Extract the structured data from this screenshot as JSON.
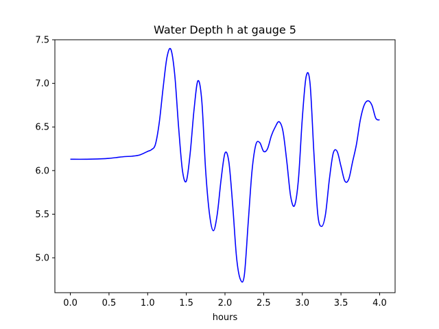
{
  "chart_data": {
    "type": "line",
    "title": "Water Depth h at gauge 5",
    "xlabel": "hours",
    "ylabel": "",
    "xlim": [
      -0.2,
      4.2
    ],
    "ylim": [
      4.6,
      7.5
    ],
    "xticks": [
      {
        "value": 0.0,
        "label": "0.0"
      },
      {
        "value": 0.5,
        "label": "0.5"
      },
      {
        "value": 1.0,
        "label": "1.0"
      },
      {
        "value": 1.5,
        "label": "1.5"
      },
      {
        "value": 2.0,
        "label": "2.0"
      },
      {
        "value": 2.5,
        "label": "2.5"
      },
      {
        "value": 3.0,
        "label": "3.0"
      },
      {
        "value": 3.5,
        "label": "3.5"
      },
      {
        "value": 4.0,
        "label": "4.0"
      }
    ],
    "yticks": [
      {
        "value": 5.0,
        "label": "5.0"
      },
      {
        "value": 5.5,
        "label": "5.5"
      },
      {
        "value": 6.0,
        "label": "6.0"
      },
      {
        "value": 6.5,
        "label": "6.5"
      },
      {
        "value": 7.0,
        "label": "7.0"
      },
      {
        "value": 7.5,
        "label": "7.5"
      }
    ],
    "grid": false,
    "legend": "none",
    "series": [
      {
        "color": "#0000ff",
        "x": [
          0.0,
          0.2,
          0.4,
          0.5,
          0.6,
          0.7,
          0.8,
          0.9,
          1.0,
          1.05,
          1.1,
          1.15,
          1.2,
          1.25,
          1.3,
          1.35,
          1.4,
          1.45,
          1.5,
          1.55,
          1.6,
          1.65,
          1.7,
          1.75,
          1.8,
          1.85,
          1.9,
          1.95,
          2.0,
          2.05,
          2.1,
          2.15,
          2.2,
          2.25,
          2.3,
          2.35,
          2.4,
          2.45,
          2.5,
          2.55,
          2.6,
          2.65,
          2.7,
          2.75,
          2.8,
          2.85,
          2.9,
          2.95,
          3.0,
          3.05,
          3.1,
          3.15,
          3.2,
          3.25,
          3.3,
          3.35,
          3.4,
          3.45,
          3.5,
          3.55,
          3.6,
          3.65,
          3.7,
          3.75,
          3.8,
          3.85,
          3.9,
          3.95,
          4.0
        ],
        "y": [
          6.13,
          6.13,
          6.135,
          6.14,
          6.15,
          6.16,
          6.165,
          6.18,
          6.22,
          6.24,
          6.3,
          6.55,
          6.95,
          7.3,
          7.39,
          7.1,
          6.5,
          6.0,
          5.88,
          6.2,
          6.7,
          7.03,
          6.8,
          6.0,
          5.5,
          5.31,
          5.5,
          5.9,
          6.2,
          6.1,
          5.6,
          5.0,
          4.75,
          4.8,
          5.4,
          6.0,
          6.3,
          6.32,
          6.22,
          6.25,
          6.4,
          6.5,
          6.56,
          6.45,
          6.1,
          5.7,
          5.6,
          5.9,
          6.6,
          7.08,
          7.0,
          6.2,
          5.5,
          5.36,
          5.5,
          5.9,
          6.2,
          6.22,
          6.05,
          5.88,
          5.9,
          6.1,
          6.3,
          6.58,
          6.75,
          6.8,
          6.75,
          6.6,
          6.58
        ]
      }
    ]
  }
}
